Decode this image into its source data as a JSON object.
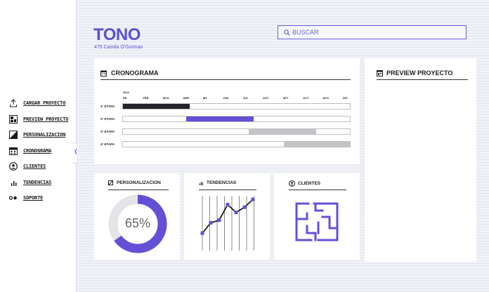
{
  "sidebar": {
    "items": [
      {
        "label": "CARGAR PROYECTO",
        "icon": "upload-icon"
      },
      {
        "label": "PREVIEW PROYECTO",
        "icon": "preview-icon"
      },
      {
        "label": "PERSONALIZACION",
        "icon": "customize-icon"
      },
      {
        "label": "CRONOGRAMA",
        "icon": "calendar-icon"
      },
      {
        "label": "CLIENTES",
        "icon": "user-icon"
      },
      {
        "label": "TENDENCIAS",
        "icon": "chart-icon"
      },
      {
        "label": "SOPORTE",
        "icon": "support-icon"
      }
    ],
    "collapse_icon": "chevron-left-icon"
  },
  "header": {
    "brand": "TONO",
    "address": "475 Camila O'Gorman"
  },
  "search": {
    "placeholder": "BUSCAR",
    "icon": "search-icon"
  },
  "cronograma": {
    "title": "CRONOGRAMA",
    "icon": "calendar-icon",
    "year": "2022",
    "months": [
      "EN",
      "FEB",
      "MZO",
      "ABR",
      "MY.",
      "JUN",
      "JUL",
      "AGT",
      "SET",
      "OCT",
      "NOV",
      "DIC"
    ],
    "stages": [
      {
        "label": "1° ETAPA",
        "start": 0,
        "end": 0.295,
        "color": "#23232b"
      },
      {
        "label": "2° ETAPA",
        "start": 0.28,
        "end": 0.575,
        "color": "#6350d6"
      },
      {
        "label": "3° ETAPA",
        "start": 0.555,
        "end": 0.85,
        "color": "#c4c4c6"
      },
      {
        "label": "4° ETAPA",
        "start": 0.71,
        "end": 1.0,
        "color": "#c4c4c6"
      }
    ]
  },
  "preview": {
    "title": "PREVIEW PROYECTO",
    "icon": "preview-icon"
  },
  "personalizacion": {
    "title": "PERSONALIZACION",
    "icon": "customize-icon",
    "value_label": "65%",
    "value": 65,
    "colors": {
      "fill": "#6350d6",
      "track": "#e4e4e8"
    }
  },
  "tendencias": {
    "title": "TENDENCIAS",
    "icon": "chart-icon",
    "values": [
      2,
      4,
      4.5,
      7.5,
      6,
      7,
      8.5
    ],
    "line_color": "#1a1a1a",
    "point_color": "#6350d6"
  },
  "clientes": {
    "title": "CLIENTES",
    "icon": "user-icon",
    "illustration": "floor-plan-icon"
  }
}
